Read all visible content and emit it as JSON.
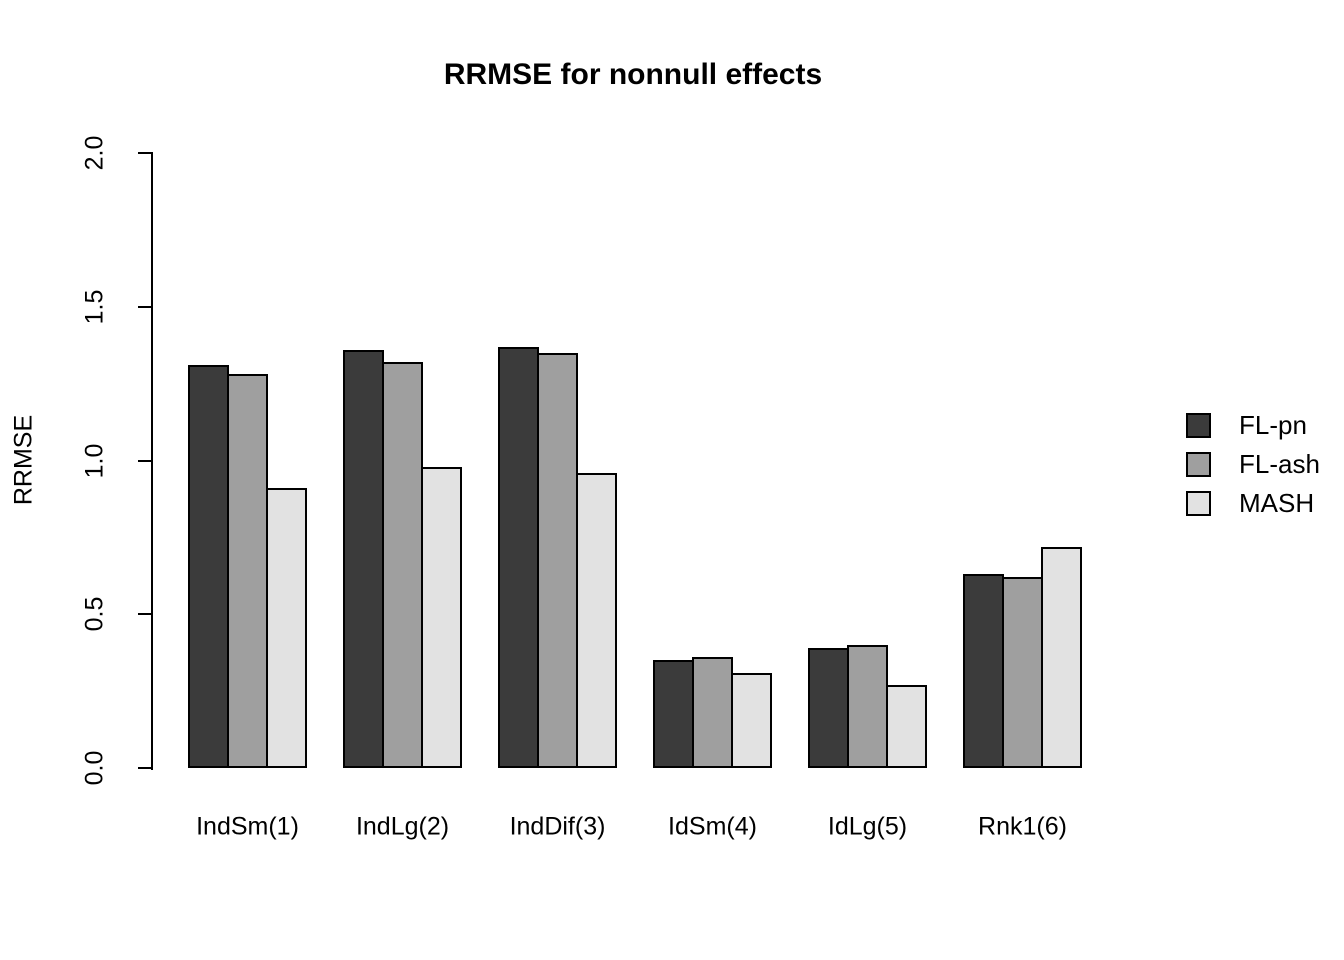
{
  "chart_data": {
    "type": "bar",
    "title": "RRMSE for nonnull effects",
    "xlabel": "",
    "ylabel": "RRMSE",
    "categories": [
      "IndSm(1)",
      "IndLg(2)",
      "IndDif(3)",
      "IdSm(4)",
      "IdLg(5)",
      "Rnk1(6)"
    ],
    "series": [
      {
        "name": "FL-pn",
        "color": "#3b3b3b",
        "values": [
          1.31,
          1.36,
          1.37,
          0.35,
          0.39,
          0.63
        ]
      },
      {
        "name": "FL-ash",
        "color": "#9f9f9f",
        "values": [
          1.28,
          1.32,
          1.35,
          0.36,
          0.4,
          0.62
        ]
      },
      {
        "name": "MASH",
        "color": "#e2e2e2",
        "values": [
          0.91,
          0.98,
          0.96,
          0.31,
          0.27,
          0.72
        ]
      }
    ],
    "ylim": [
      0.0,
      2.0
    ],
    "yticks": [
      "0.0",
      "0.5",
      "1.0",
      "1.5",
      "2.0"
    ],
    "grid": false,
    "legend_position": "right",
    "bar_border_color": "#000000",
    "background_color": "#ffffff",
    "text_color": "#000000"
  }
}
